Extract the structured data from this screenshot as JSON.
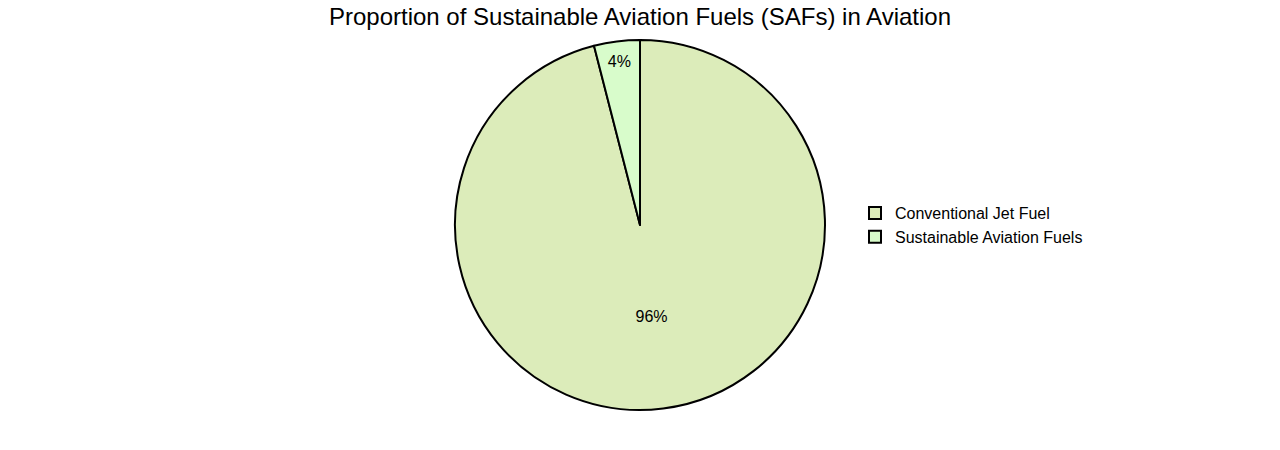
{
  "chart_data": {
    "type": "pie",
    "title": "Proportion of Sustainable Aviation Fuels (SAFs) in Aviation",
    "categories": [
      "Conventional Jet Fuel",
      "Sustainable Aviation Fuels"
    ],
    "values": [
      96,
      4
    ],
    "value_labels": [
      "96%",
      "4%"
    ],
    "colors": [
      "#dcecba",
      "#d8fccb"
    ],
    "data_labels": true,
    "legend": "right"
  }
}
